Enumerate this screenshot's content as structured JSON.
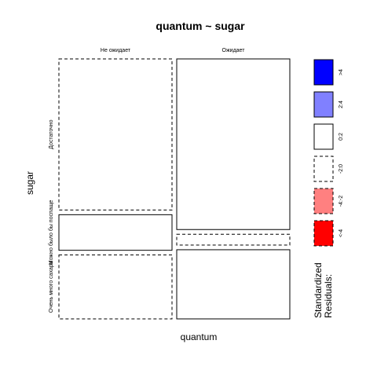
{
  "chart_data": {
    "type": "mosaic",
    "title": "quantum ~ sugar",
    "xlabel": "quantum",
    "ylabel": "sugar",
    "column_categories": [
      "Не ожидает",
      "Ожидает"
    ],
    "row_categories": [
      "Достаточно",
      "Можно было бы поспаще",
      "Очень много сахара"
    ],
    "column_proportions": [
      0.5,
      0.5
    ],
    "cells": [
      {
        "column": "Не ожидает",
        "row": "Достаточно",
        "share": 0.603,
        "residual_class": "-2:0"
      },
      {
        "column": "Не ожидает",
        "row": "Можно было бы поспаще",
        "share": 0.142,
        "residual_class": "0:2"
      },
      {
        "column": "Не ожидает",
        "row": "Очень много сахара",
        "share": 0.255,
        "residual_class": "-2:0"
      },
      {
        "column": "Ожидает",
        "row": "Достаточно",
        "share": 0.681,
        "residual_class": "0:2"
      },
      {
        "column": "Ожидает",
        "row": "Можно было бы поспаще",
        "share": 0.043,
        "residual_class": "-2:0"
      },
      {
        "column": "Ожидает",
        "row": "Очень много сахара",
        "share": 0.276,
        "residual_class": "0:2"
      }
    ],
    "legend": {
      "title_line1": "Standardized",
      "title_line2": "Residuals:",
      "placement": "right",
      "entries": [
        {
          "label": ">4",
          "fill": "#0000ff",
          "dashed": false
        },
        {
          "label": "2:4",
          "fill": "#8080ff",
          "dashed": false
        },
        {
          "label": "0:2",
          "fill": "#ffffff",
          "dashed": false
        },
        {
          "label": "-2:0",
          "fill": "#ffffff",
          "dashed": true
        },
        {
          "label": "-4:-2",
          "fill": "#ff8080",
          "dashed": true
        },
        {
          "label": "<-4",
          "fill": "#ff0000",
          "dashed": true
        }
      ]
    }
  }
}
